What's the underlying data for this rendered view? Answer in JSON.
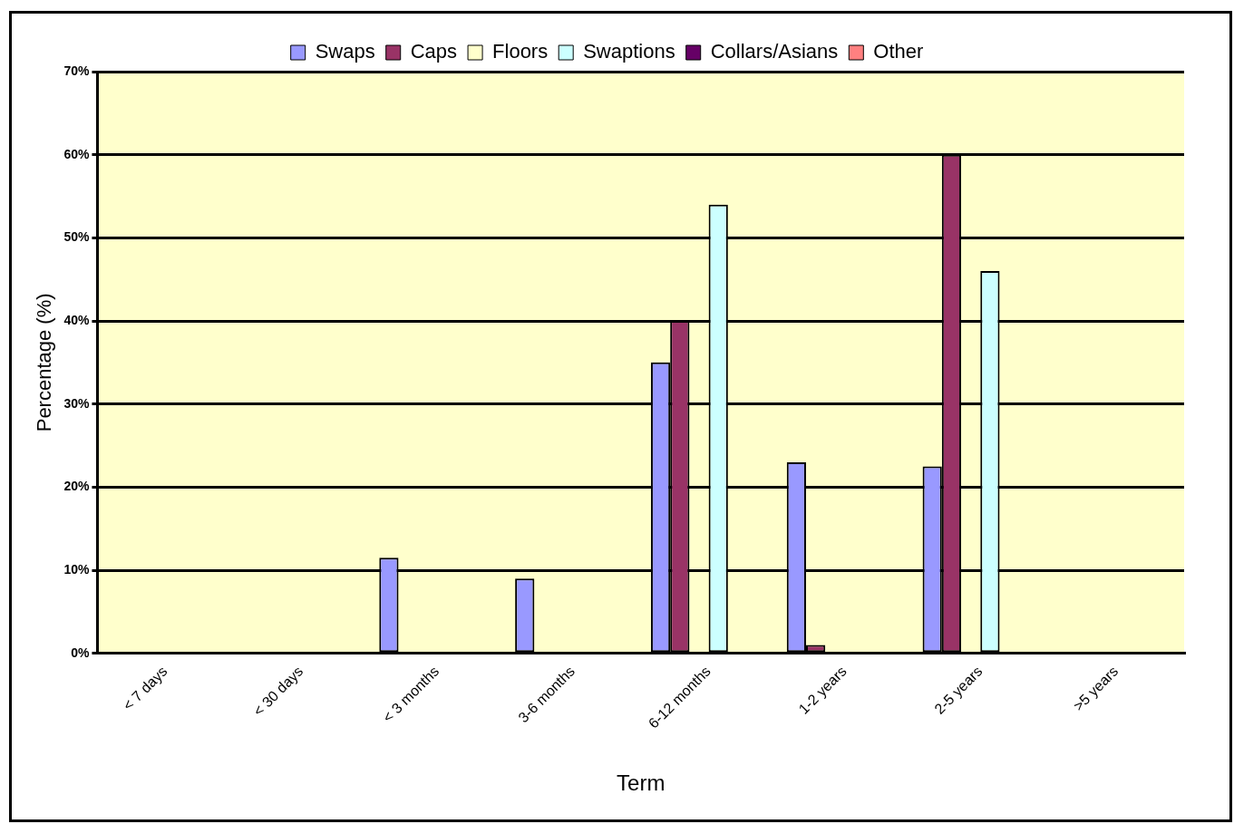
{
  "chart_data": {
    "type": "bar",
    "xlabel": "Term",
    "ylabel": "Percentage (%)",
    "categories": [
      "< 7 days",
      "< 30 days",
      "< 3 months",
      "3-6 months",
      "6-12 months",
      "1-2 years",
      "2-5 years",
      ">5 years"
    ],
    "series": [
      {
        "name": "Swaps",
        "color": "#9999ff",
        "values": [
          null,
          null,
          11.5,
          9,
          35,
          23,
          22.5,
          null
        ]
      },
      {
        "name": "Caps",
        "color": "#993366",
        "values": [
          null,
          null,
          null,
          null,
          40,
          1,
          60,
          null
        ]
      },
      {
        "name": "Floors",
        "color": "#ffffcc",
        "values": [
          null,
          null,
          null,
          null,
          null,
          null,
          null,
          null
        ]
      },
      {
        "name": "Swaptions",
        "color": "#ccffff",
        "values": [
          null,
          null,
          null,
          null,
          54,
          null,
          46,
          null
        ]
      },
      {
        "name": "Collars/Asians",
        "color": "#660066",
        "values": [
          null,
          null,
          null,
          null,
          null,
          null,
          null,
          null
        ]
      },
      {
        "name": "Other",
        "color": "#ff8080",
        "values": [
          null,
          null,
          null,
          null,
          null,
          null,
          null,
          null
        ]
      }
    ],
    "ylim": [
      0,
      70
    ],
    "yticks": [
      {
        "value": 0,
        "label": "0%"
      },
      {
        "value": 10,
        "label": "10%"
      },
      {
        "value": 20,
        "label": "20%"
      },
      {
        "value": 30,
        "label": "30%"
      },
      {
        "value": 40,
        "label": "40%"
      },
      {
        "value": 50,
        "label": "50%"
      },
      {
        "value": 60,
        "label": "60%"
      },
      {
        "value": 70,
        "label": "70%"
      }
    ],
    "grid": "y",
    "legend": "top"
  }
}
